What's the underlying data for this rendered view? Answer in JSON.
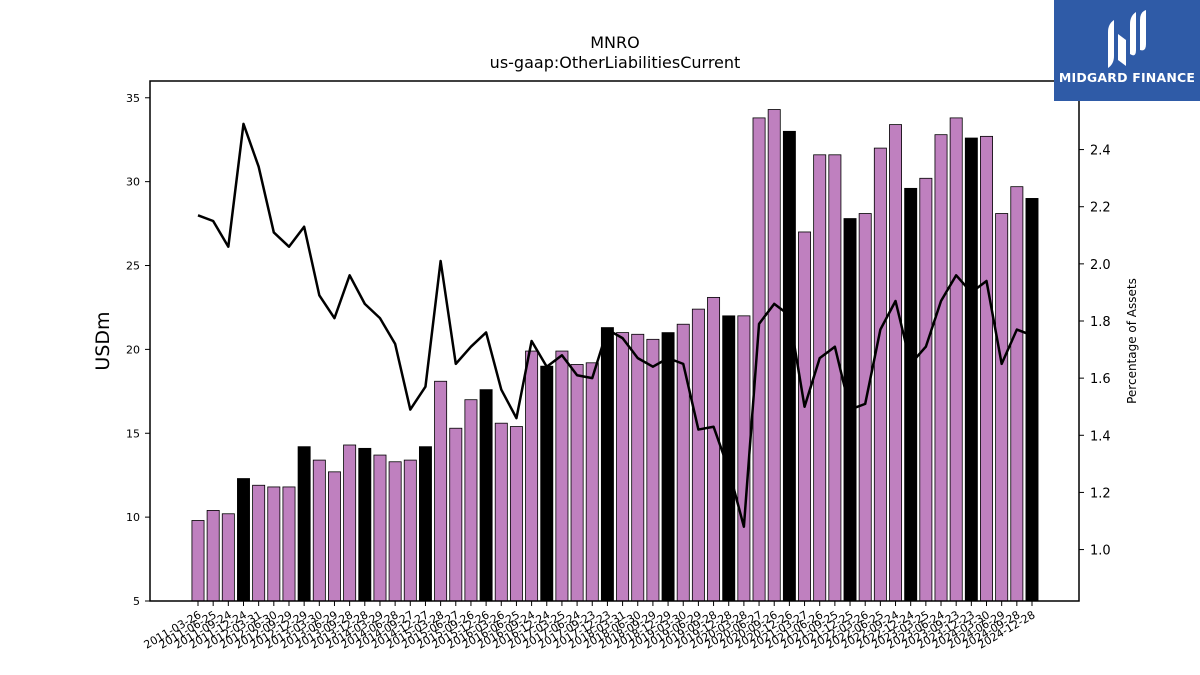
{
  "brand": {
    "name": "MIDGARD FINANCE",
    "bg_color": "#2f5ba7",
    "icon": "midgard-logo-icon"
  },
  "chart_data": {
    "type": "bar",
    "title": "MNRO",
    "subtitle": "us-gaap:OtherLiabilitiesCurrent",
    "ylabel": "USDm",
    "y2label": "Percentage of Assets",
    "ylim": [
      5,
      36
    ],
    "y2lim": [
      0.82,
      2.64
    ],
    "yticks": [
      5,
      10,
      15,
      20,
      25,
      30,
      35
    ],
    "y2ticks": [
      1.0,
      1.2,
      1.4,
      1.6,
      1.8,
      2.0,
      2.2,
      2.4
    ],
    "bar_colors": {
      "default": "#bf80bf",
      "highlight": "#000000"
    },
    "line_color": "#000000",
    "grid": false,
    "legend": "none",
    "categories": [
      "2011-03-26",
      "2011-06-25",
      "2011-09-24",
      "2011-12-24",
      "2012-03-31",
      "2012-06-30",
      "2012-09-29",
      "2012-12-29",
      "2013-03-30",
      "2013-06-29",
      "2013-09-28",
      "2013-12-28",
      "2014-03-29",
      "2014-06-28",
      "2014-09-27",
      "2014-12-27",
      "2015-03-28",
      "2015-06-27",
      "2015-09-26",
      "2015-12-26",
      "2016-03-26",
      "2016-06-25",
      "2016-09-24",
      "2016-12-24",
      "2017-03-25",
      "2017-06-24",
      "2017-09-23",
      "2017-12-23",
      "2018-03-31",
      "2018-06-30",
      "2018-09-29",
      "2018-12-29",
      "2019-03-30",
      "2019-06-29",
      "2019-09-28",
      "2019-12-28",
      "2020-03-28",
      "2020-06-27",
      "2020-09-26",
      "2020-12-26",
      "2021-03-27",
      "2021-06-26",
      "2021-09-25",
      "2021-12-25",
      "2022-03-26",
      "2022-06-25",
      "2022-09-24",
      "2022-12-24",
      "2023-03-25",
      "2023-06-24",
      "2023-09-23",
      "2023-12-23",
      "2024-03-30",
      "2024-06-29",
      "2024-09-28",
      "2024-12-28"
    ],
    "series": [
      {
        "type": "bar",
        "values": [
          9.8,
          10.4,
          10.2,
          12.3,
          11.9,
          11.8,
          11.8,
          14.2,
          13.4,
          12.7,
          14.3,
          14.1,
          13.7,
          13.3,
          13.4,
          14.2,
          18.1,
          15.3,
          17.0,
          17.6,
          15.6,
          15.4,
          19.9,
          19.0,
          19.9,
          19.1,
          19.2,
          21.3,
          21.0,
          20.9,
          20.6,
          21.0,
          21.5,
          22.4,
          23.1,
          22.0,
          22.0,
          33.8,
          34.3,
          33.0,
          27.0,
          31.6,
          31.6,
          27.8,
          28.1,
          32.0,
          33.4,
          29.6,
          30.2,
          32.8,
          33.8,
          32.6,
          32.7,
          28.1,
          29.7,
          29.0
        ],
        "highlight": [
          false,
          false,
          false,
          true,
          false,
          false,
          false,
          true,
          false,
          false,
          false,
          true,
          false,
          false,
          false,
          true,
          false,
          false,
          false,
          true,
          false,
          false,
          false,
          true,
          false,
          false,
          false,
          true,
          false,
          false,
          false,
          true,
          false,
          false,
          false,
          true,
          false,
          false,
          false,
          true,
          false,
          false,
          false,
          true,
          false,
          false,
          false,
          true,
          false,
          false,
          false,
          true,
          false,
          false,
          false,
          true
        ]
      },
      {
        "type": "line",
        "axis": "right",
        "values": [
          2.17,
          2.15,
          2.06,
          2.49,
          2.34,
          2.11,
          2.06,
          2.13,
          1.89,
          1.81,
          1.96,
          1.86,
          1.81,
          1.72,
          1.49,
          1.57,
          2.01,
          1.65,
          1.71,
          1.76,
          1.56,
          1.46,
          1.73,
          1.64,
          1.68,
          1.61,
          1.6,
          1.77,
          1.74,
          1.67,
          1.64,
          1.67,
          1.65,
          1.42,
          1.43,
          1.28,
          1.08,
          1.79,
          1.86,
          1.82,
          1.5,
          1.67,
          1.71,
          1.49,
          1.51,
          1.77,
          1.87,
          1.65,
          1.71,
          1.87,
          1.96,
          1.9,
          1.94,
          1.65,
          1.77,
          1.75
        ]
      }
    ]
  }
}
